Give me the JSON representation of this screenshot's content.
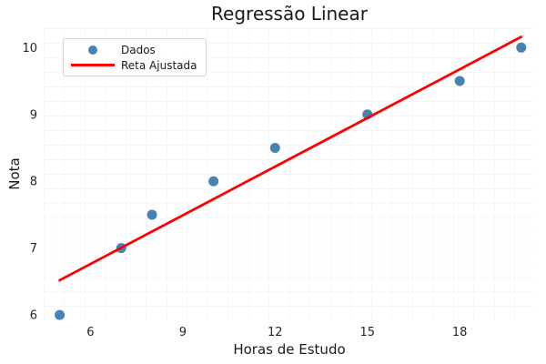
{
  "figure": {
    "background": "#ffffff",
    "text_color": "#1a1a1a",
    "grid_color": "#f0eded"
  },
  "chart_data": {
    "type": "scatter",
    "title": "Regressão Linear",
    "xlabel": "Horas de Estudo",
    "ylabel": "Nota",
    "xticks": [
      6,
      9,
      12,
      15,
      18
    ],
    "yticks": [
      6,
      7,
      8,
      9,
      10
    ],
    "xlim": [
      4.48,
      20.45
    ],
    "ylim": [
      5.92,
      10.29
    ],
    "grid": true,
    "legend_position": "upper left",
    "series": [
      {
        "name": "Dados",
        "type": "scatter",
        "color": "#4682B4",
        "x": [
          5,
          7,
          8,
          10,
          12,
          15,
          18,
          20
        ],
        "y": [
          6,
          7,
          7.5,
          8,
          8.5,
          9,
          9.5,
          10
        ]
      },
      {
        "name": "Reta Ajustada",
        "type": "line",
        "color": "#FF0000",
        "x": [
          5,
          20
        ],
        "y": [
          6.52,
          10.16
        ]
      }
    ]
  }
}
